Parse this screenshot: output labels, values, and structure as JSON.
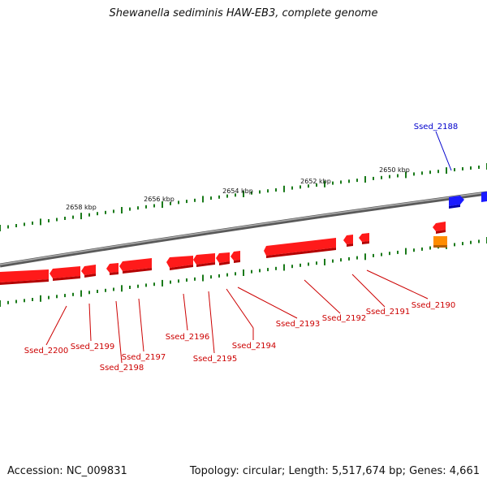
{
  "title": "Shewanella sediminis HAW-EB3, complete genome",
  "footer": {
    "accession": "Accession: NC_009831",
    "summary": "Topology: circular; Length: 5,517,674 bp; Genes: 4,661"
  },
  "colors": {
    "forward_gene": "#ff1a1a",
    "reverse_gene": "#ff1a1a",
    "highlight_gene": "#1a1aff",
    "other_feature": "#ff8c00",
    "backbone": "#808080",
    "ticks": "#1a7a1a",
    "labels_red": "#cc0000",
    "labels_blue": "#0000cc"
  },
  "scale_labels": [
    "2658 kbp",
    "2656 kbp",
    "2654 kbp",
    "2652 kbp",
    "2650 kbp"
  ],
  "genes": [
    {
      "name": "Ssed_2188",
      "color": "blue"
    },
    {
      "name": "Ssed_2190",
      "color": "red"
    },
    {
      "name": "Ssed_2191",
      "color": "red"
    },
    {
      "name": "Ssed_2192",
      "color": "red"
    },
    {
      "name": "Ssed_2193",
      "color": "red"
    },
    {
      "name": "Ssed_2194",
      "color": "red"
    },
    {
      "name": "Ssed_2195",
      "color": "red"
    },
    {
      "name": "Ssed_2196",
      "color": "red"
    },
    {
      "name": "Ssed_2197",
      "color": "red"
    },
    {
      "name": "Ssed_2198",
      "color": "red"
    },
    {
      "name": "Ssed_2199",
      "color": "red"
    },
    {
      "name": "Ssed_2200",
      "color": "red"
    }
  ]
}
